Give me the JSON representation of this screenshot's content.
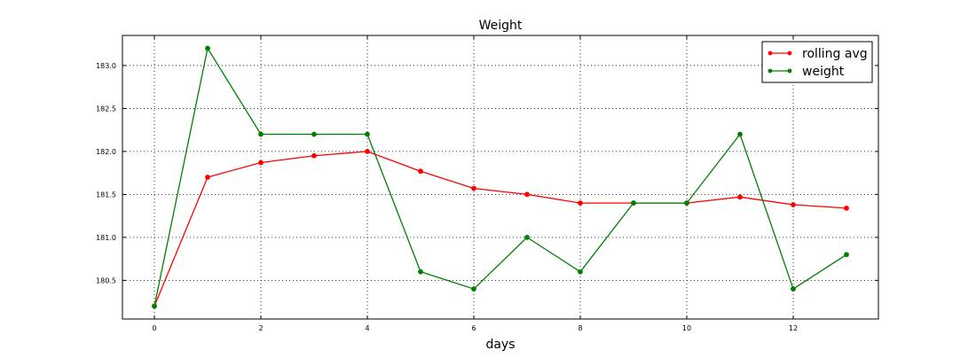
{
  "chart_data": {
    "type": "line",
    "title": "Weight",
    "xlabel": "days",
    "ylabel": "",
    "xlim": [
      -0.6,
      13.6
    ],
    "ylim": [
      180.05,
      183.35
    ],
    "xticks": [
      "0",
      "2",
      "4",
      "6",
      "8",
      "10",
      "12"
    ],
    "yticks": [
      "180.5",
      "181.0",
      "181.5",
      "182.0",
      "182.5",
      "183.0"
    ],
    "grid": true,
    "legend_position": "top-right",
    "x": [
      0,
      1,
      2,
      3,
      4,
      5,
      6,
      7,
      8,
      9,
      10,
      11,
      12,
      13
    ],
    "series": [
      {
        "name": "rolling avg",
        "color": "#ff0000",
        "values": [
          180.2,
          181.7,
          181.87,
          181.95,
          182.0,
          181.77,
          181.57,
          181.5,
          181.4,
          181.4,
          181.4,
          181.47,
          181.38,
          181.34
        ]
      },
      {
        "name": "weight",
        "color": "#008000",
        "values": [
          180.2,
          183.2,
          182.2,
          182.2,
          182.2,
          180.6,
          180.4,
          181.0,
          180.6,
          181.4,
          181.4,
          182.2,
          180.4,
          180.8
        ]
      }
    ]
  }
}
